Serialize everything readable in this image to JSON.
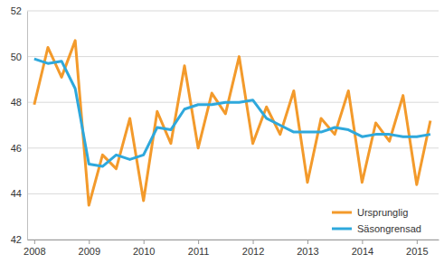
{
  "chart_data": {
    "type": "line",
    "x": [
      2008,
      2008.25,
      2008.5,
      2008.75,
      2009,
      2009.25,
      2009.5,
      2009.75,
      2010,
      2010.25,
      2010.5,
      2010.75,
      2011,
      2011.25,
      2011.5,
      2011.75,
      2012,
      2012.25,
      2012.5,
      2012.75,
      2013,
      2013.25,
      2013.5,
      2013.75,
      2014,
      2014.25,
      2014.5,
      2014.75,
      2015,
      2015.25
    ],
    "series": [
      {
        "name": "Ursprunglig",
        "color": "#f39a2b",
        "values": [
          47.9,
          50.4,
          49.1,
          50.7,
          43.5,
          45.7,
          45.1,
          47.3,
          43.7,
          47.6,
          46.2,
          49.6,
          46.0,
          48.4,
          47.5,
          50.0,
          46.2,
          47.8,
          46.6,
          48.5,
          44.5,
          47.3,
          46.6,
          48.5,
          44.5,
          47.1,
          46.3,
          48.3,
          44.4,
          47.2
        ]
      },
      {
        "name": "Säsongrensad",
        "color": "#2ea8dc",
        "values": [
          49.9,
          49.7,
          49.8,
          48.6,
          45.3,
          45.2,
          45.7,
          45.5,
          45.7,
          46.9,
          46.8,
          47.7,
          47.9,
          47.9,
          48.0,
          48.0,
          48.1,
          47.3,
          47.0,
          46.7,
          46.7,
          46.7,
          46.9,
          46.8,
          46.5,
          46.6,
          46.6,
          46.5,
          46.5,
          46.6
        ]
      }
    ],
    "xlim": [
      2007.87,
      2015.4
    ],
    "xticks": [
      2008,
      2009,
      2010,
      2011,
      2012,
      2013,
      2014,
      2015
    ],
    "ylim": [
      42,
      52
    ],
    "yticks": [
      42,
      44,
      46,
      48,
      50,
      52
    ],
    "grid": true,
    "legend": "bottom-right"
  }
}
